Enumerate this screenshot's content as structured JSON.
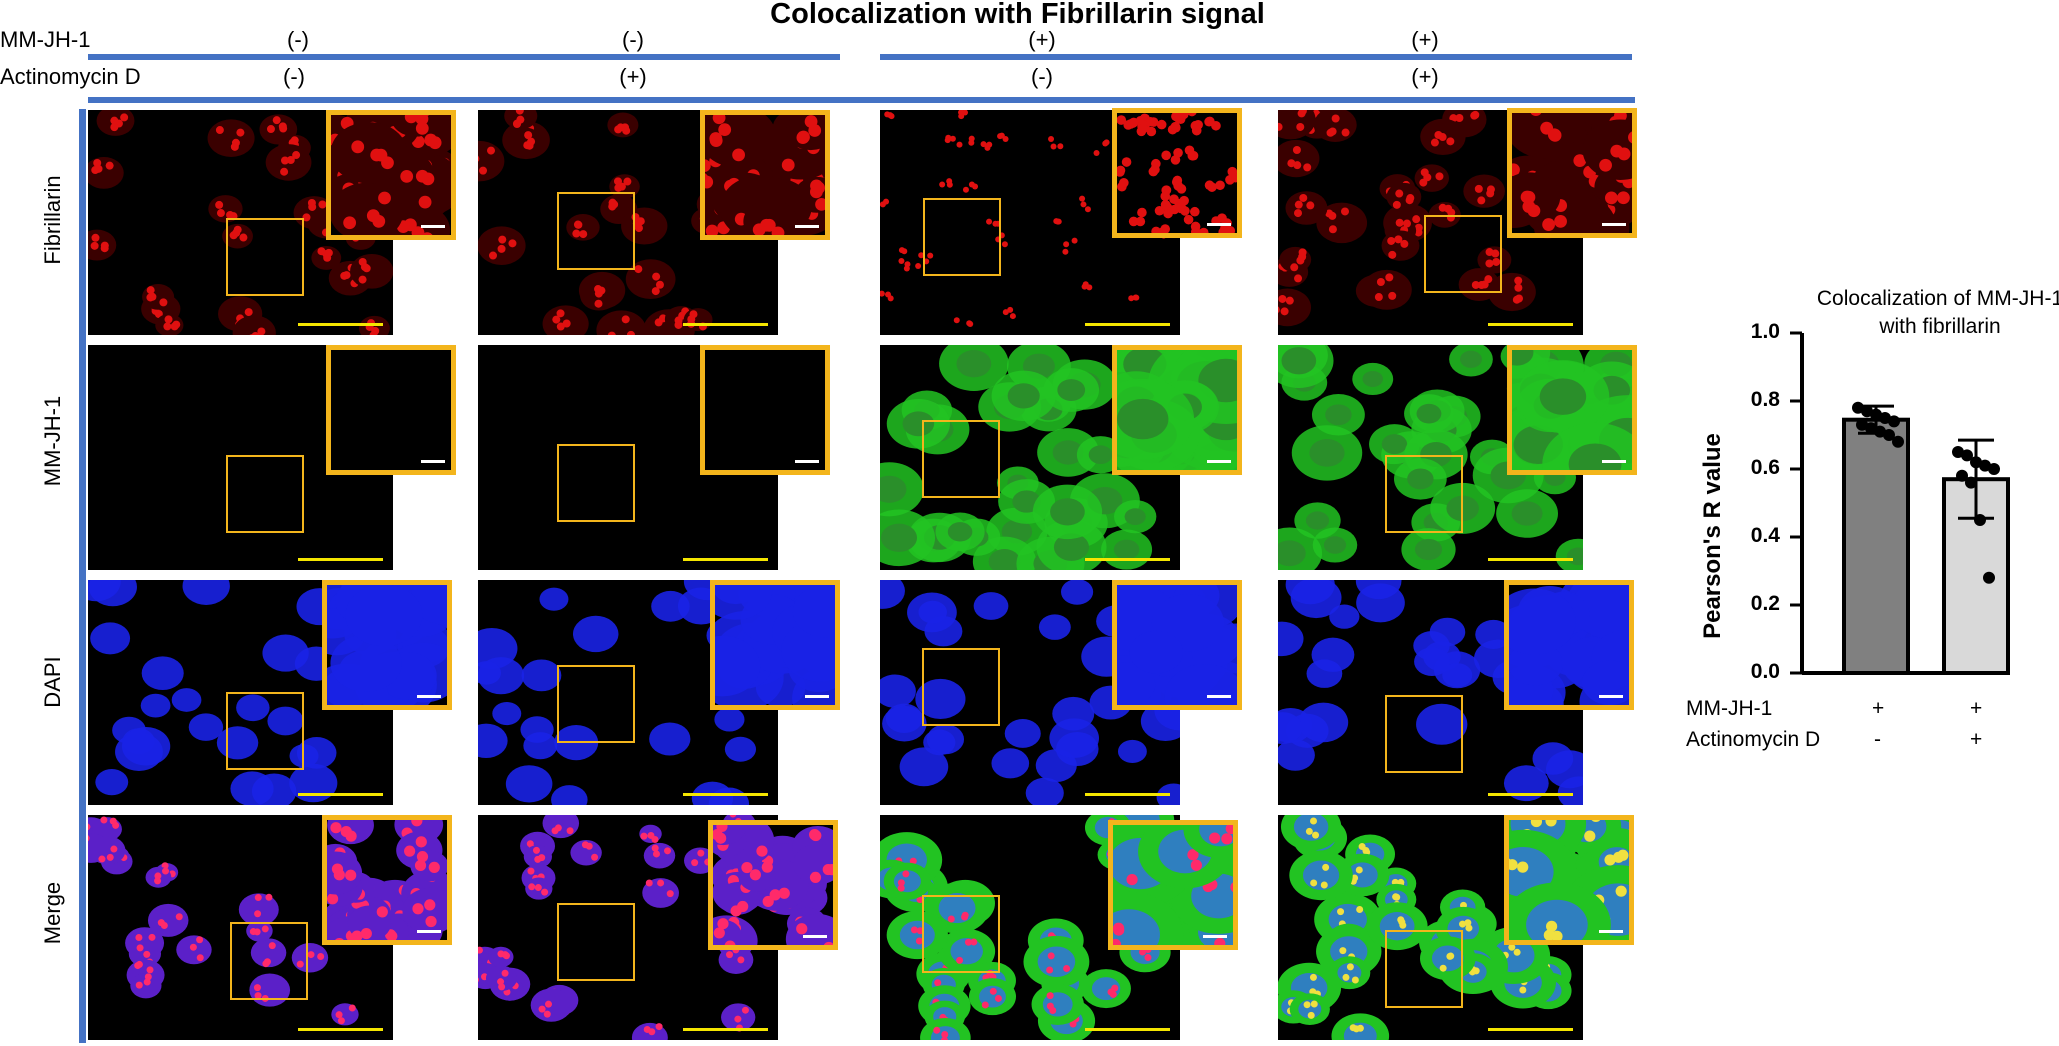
{
  "figure": {
    "title": "Colocalization with Fibrillarin signal",
    "row_labels": {
      "mm": "MM-JH-1",
      "act": "Actinomycin D"
    },
    "columns": [
      {
        "mm": "(-)",
        "act": "(-)"
      },
      {
        "mm": "(-)",
        "act": "(+)"
      },
      {
        "mm": "(+)",
        "act": "(-)"
      },
      {
        "mm": "(+)",
        "act": "(+)"
      }
    ],
    "channels": [
      "Fibrillarin",
      "MM-JH-1",
      "DAPI",
      "Merge"
    ],
    "colors": {
      "fibrillarin": "#e01010",
      "mmjh1": "#22c322",
      "dapi": "#1a22e6",
      "box": "#f3b51c",
      "divider": "#4472c4",
      "scalebar": "#f5e600"
    }
  },
  "chart_data": {
    "type": "bar",
    "title": "Colocalization of MM-JH-1 with fibrillarin",
    "title_line1": "Colocalization of MM-JH-1",
    "title_line2": "with fibrillarin",
    "ylabel": "Pearson's R value",
    "ylim": [
      0,
      1.0
    ],
    "yticks": [
      "0.0",
      "0.2",
      "0.4",
      "0.6",
      "0.8",
      "1.0"
    ],
    "categories": [
      "MM-JH-1 +, Actinomycin D -",
      "MM-JH-1 +, Actinomycin D +"
    ],
    "values": [
      0.745,
      0.57
    ],
    "errors": [
      0.04,
      0.115
    ],
    "bar_colors": [
      "#808080",
      "#d9d9d9"
    ],
    "points": [
      [
        0.78,
        0.77,
        0.76,
        0.75,
        0.74,
        0.73,
        0.72,
        0.71,
        0.7,
        0.68
      ],
      [
        0.65,
        0.64,
        0.62,
        0.61,
        0.6,
        0.58,
        0.56,
        0.45,
        0.28
      ]
    ],
    "condition_rows": [
      {
        "label": "MM-JH-1",
        "values": [
          "+",
          "+"
        ]
      },
      {
        "label": "Actinomycin D",
        "values": [
          "-",
          "+"
        ]
      }
    ]
  }
}
